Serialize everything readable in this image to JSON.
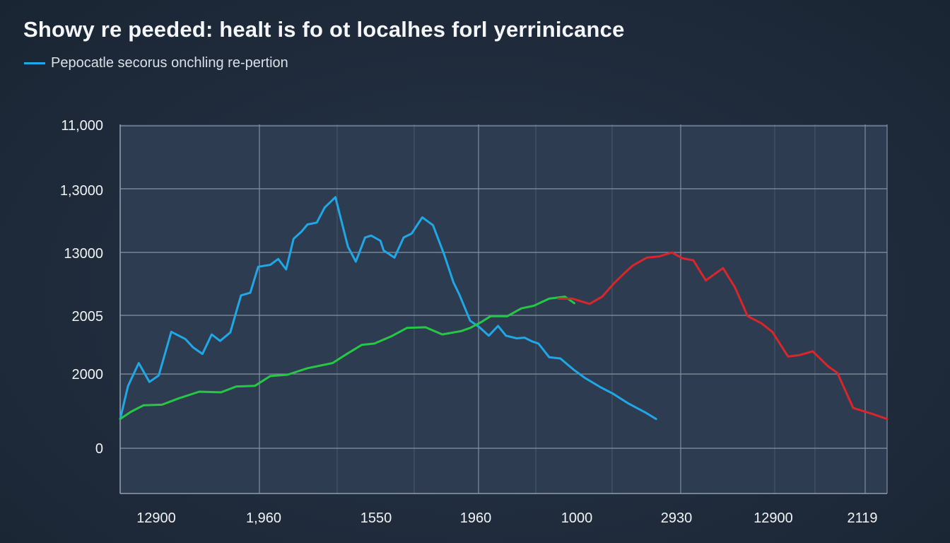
{
  "chart_data": {
    "type": "line",
    "title": "Showy re peeded: healt is fo ot localhes forl yerrinicance",
    "legend": {
      "position": "top-left",
      "entries": [
        "Pepocatle secorus onchling re-pertion"
      ]
    },
    "x_tick_labels": [
      "12900",
      "1,960",
      "1550",
      "1960",
      "1000",
      "2930",
      "12900",
      "2119"
    ],
    "y_tick_labels": [
      "0",
      "2000",
      "2005",
      "13000",
      "1,3000",
      "11,000"
    ],
    "grid": true,
    "ylim": [
      0,
      6
    ],
    "series": [
      {
        "name": "Pepocatle secorus onchling re-pertion",
        "color": "#1fa7e6",
        "points": [
          [
            0.0,
            0.45
          ],
          [
            0.17,
            0.96
          ],
          [
            0.4,
            1.31
          ],
          [
            0.63,
            1.02
          ],
          [
            0.83,
            1.12
          ],
          [
            1.1,
            1.79
          ],
          [
            1.4,
            1.68
          ],
          [
            1.57,
            1.55
          ],
          [
            1.77,
            1.45
          ],
          [
            1.97,
            1.75
          ],
          [
            2.15,
            1.65
          ],
          [
            2.37,
            1.78
          ],
          [
            2.6,
            2.35
          ],
          [
            2.8,
            2.39
          ],
          [
            2.97,
            2.79
          ],
          [
            3.23,
            2.82
          ],
          [
            3.4,
            2.91
          ],
          [
            3.57,
            2.75
          ],
          [
            3.73,
            3.22
          ],
          [
            3.9,
            3.33
          ],
          [
            4.03,
            3.44
          ],
          [
            4.23,
            3.47
          ],
          [
            4.4,
            3.7
          ],
          [
            4.63,
            3.86
          ],
          [
            4.9,
            3.1
          ],
          [
            5.07,
            2.87
          ],
          [
            5.27,
            3.24
          ],
          [
            5.4,
            3.27
          ],
          [
            5.6,
            3.19
          ],
          [
            5.67,
            3.04
          ],
          [
            5.9,
            2.93
          ],
          [
            6.1,
            3.24
          ],
          [
            6.27,
            3.3
          ],
          [
            6.5,
            3.55
          ],
          [
            6.73,
            3.43
          ],
          [
            6.97,
            2.98
          ],
          [
            7.17,
            2.55
          ],
          [
            7.3,
            2.36
          ],
          [
            7.53,
            1.96
          ],
          [
            7.73,
            1.86
          ],
          [
            7.93,
            1.73
          ],
          [
            8.13,
            1.88
          ],
          [
            8.3,
            1.73
          ],
          [
            8.53,
            1.69
          ],
          [
            8.7,
            1.7
          ],
          [
            8.87,
            1.64
          ],
          [
            9.0,
            1.61
          ],
          [
            9.23,
            1.4
          ],
          [
            9.47,
            1.38
          ],
          [
            9.77,
            1.2
          ],
          [
            10.0,
            1.08
          ],
          [
            10.33,
            0.94
          ],
          [
            10.6,
            0.84
          ],
          [
            10.93,
            0.69
          ],
          [
            11.3,
            0.55
          ],
          [
            11.53,
            0.45
          ]
        ]
      },
      {
        "color": "#27c746",
        "points": [
          [
            0.0,
            0.45
          ],
          [
            0.23,
            0.56
          ],
          [
            0.5,
            0.66
          ],
          [
            0.9,
            0.67
          ],
          [
            1.27,
            0.77
          ],
          [
            1.7,
            0.87
          ],
          [
            2.17,
            0.86
          ],
          [
            2.5,
            0.95
          ],
          [
            2.9,
            0.96
          ],
          [
            3.23,
            1.11
          ],
          [
            3.6,
            1.13
          ],
          [
            4.03,
            1.23
          ],
          [
            4.57,
            1.31
          ],
          [
            4.9,
            1.46
          ],
          [
            5.2,
            1.59
          ],
          [
            5.47,
            1.61
          ],
          [
            5.83,
            1.72
          ],
          [
            6.17,
            1.85
          ],
          [
            6.57,
            1.86
          ],
          [
            6.93,
            1.75
          ],
          [
            7.33,
            1.8
          ],
          [
            7.53,
            1.85
          ],
          [
            7.77,
            1.94
          ],
          [
            7.97,
            2.03
          ],
          [
            8.33,
            2.03
          ],
          [
            8.63,
            2.15
          ],
          [
            8.9,
            2.19
          ],
          [
            9.23,
            2.3
          ],
          [
            9.57,
            2.33
          ],
          [
            9.77,
            2.23
          ]
        ]
      },
      {
        "color": "#d9262a",
        "points": [
          [
            9.43,
            2.3
          ],
          [
            9.73,
            2.3
          ],
          [
            10.1,
            2.22
          ],
          [
            10.37,
            2.33
          ],
          [
            10.63,
            2.54
          ],
          [
            10.83,
            2.68
          ],
          [
            11.03,
            2.81
          ],
          [
            11.33,
            2.93
          ],
          [
            11.6,
            2.95
          ],
          [
            11.87,
            3.01
          ],
          [
            12.1,
            2.92
          ],
          [
            12.33,
            2.89
          ],
          [
            12.6,
            2.58
          ],
          [
            12.97,
            2.77
          ],
          [
            13.23,
            2.47
          ],
          [
            13.5,
            2.03
          ],
          [
            13.8,
            1.92
          ],
          [
            14.03,
            1.79
          ],
          [
            14.37,
            1.41
          ],
          [
            14.6,
            1.43
          ],
          [
            14.9,
            1.49
          ],
          [
            15.23,
            1.26
          ],
          [
            15.43,
            1.16
          ],
          [
            15.77,
            0.62
          ],
          [
            16.17,
            0.53
          ],
          [
            16.5,
            0.45
          ]
        ]
      }
    ]
  }
}
